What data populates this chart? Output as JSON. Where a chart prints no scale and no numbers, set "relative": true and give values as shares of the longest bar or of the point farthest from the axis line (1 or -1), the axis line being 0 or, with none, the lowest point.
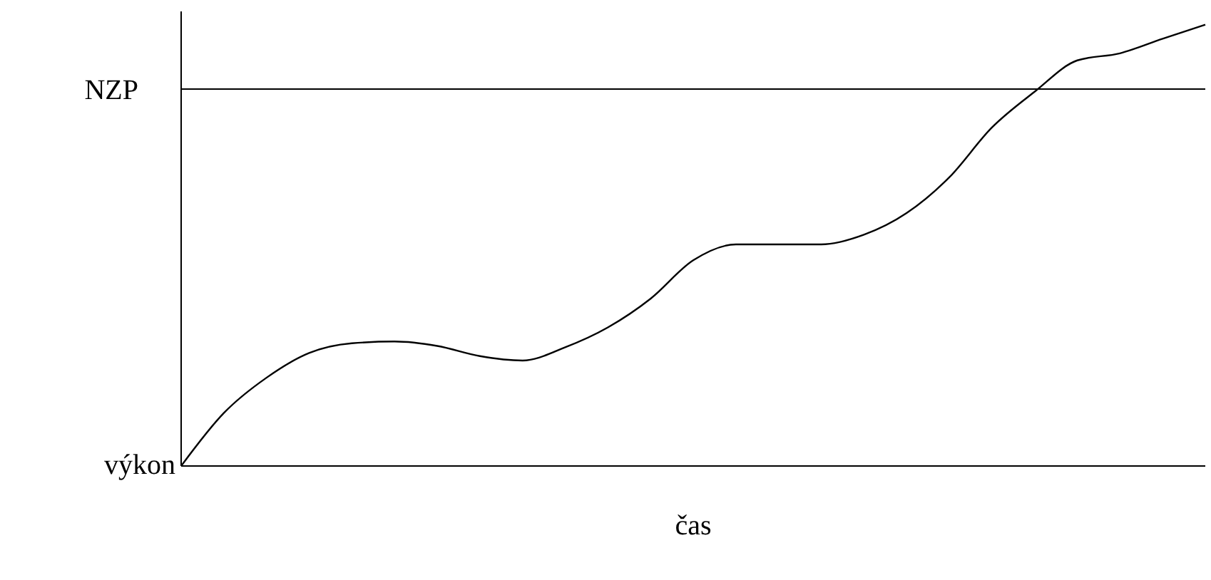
{
  "chart_data": {
    "type": "line",
    "relative": true,
    "ylabel": "výkon",
    "xlabel": "čas",
    "categories": [
      null,
      null,
      null,
      null,
      null,
      null,
      null,
      null,
      null,
      null,
      null,
      null,
      null,
      null,
      null,
      null,
      null,
      null,
      null,
      null,
      null,
      null,
      null,
      null,
      null
    ],
    "series": [
      {
        "color": "#000000",
        "values": [
          0,
          0.12,
          0.2,
          0.256,
          0.278,
          0.282,
          0.272,
          0.249,
          0.239,
          0.269,
          0.314,
          0.379,
          0.466,
          0.502,
          0.502,
          0.502,
          0.524,
          0.573,
          0.654,
          0.767,
          0.848,
          0.919,
          0.935,
          0.968,
          1
        ]
      }
    ],
    "ref_lines": [
      {
        "axis": "y",
        "value": 0.854,
        "label": "NZP",
        "color": "#000000"
      }
    ],
    "grid": false,
    "legend": false,
    "marker": "none",
    "line_style": "solid"
  }
}
